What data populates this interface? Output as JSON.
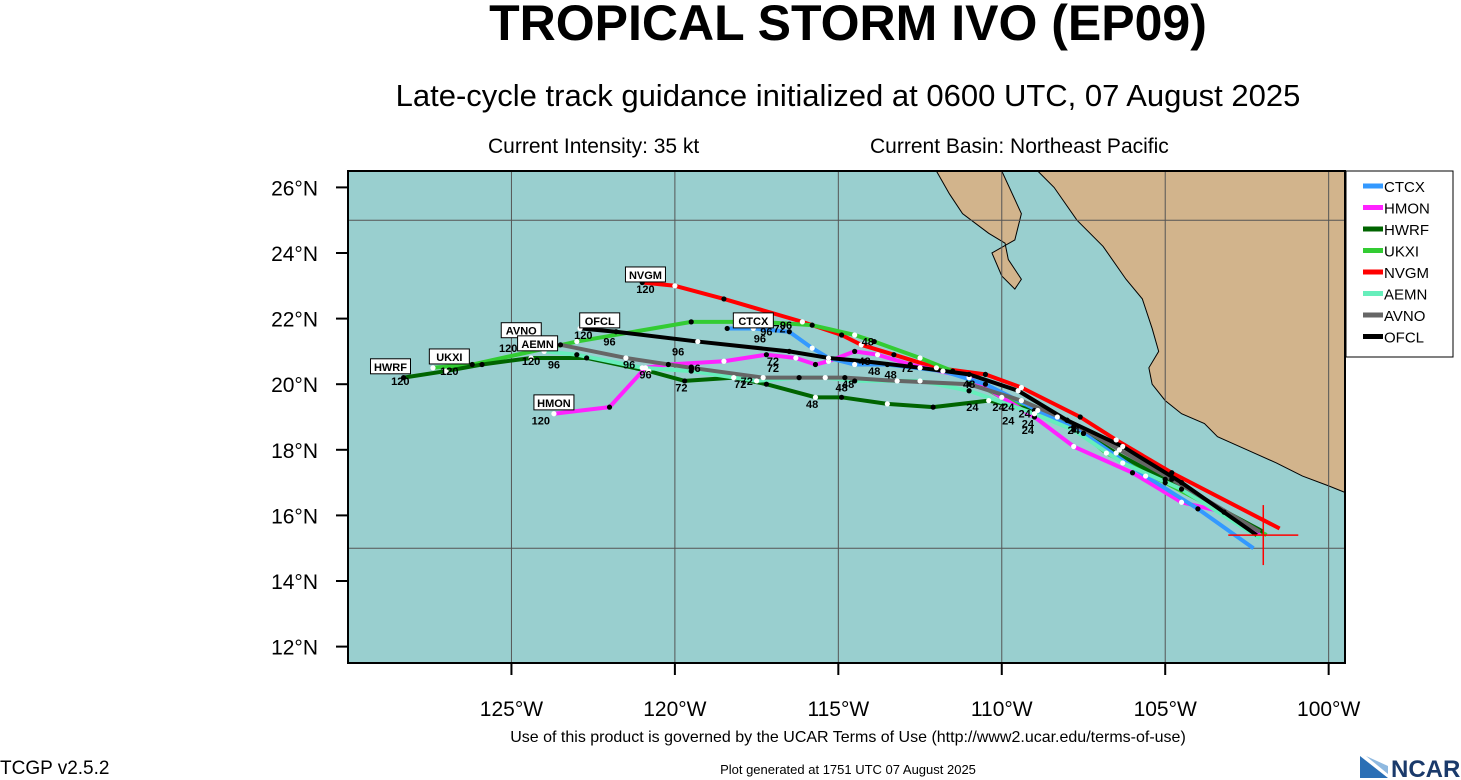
{
  "header": {
    "title": "TROPICAL STORM IVO (EP09)",
    "subtitle": "Late-cycle track guidance initialized at 0600 UTC, 07 August 2025",
    "intensity": "Current Intensity: 35 kt",
    "basin": "Current Basin: Northeast Pacific"
  },
  "footer": {
    "terms": "Use of this product is governed by the UCAR Terms of Use (http://www2.ucar.edu/terms-of-use)",
    "version": "TCGP v2.5.2",
    "generated": "Plot generated at 1751 UTC   07 August 2025",
    "logo_text": "NCAR"
  },
  "colors": {
    "ocean": "#99cfcf",
    "land": "#d2b48c",
    "grid": "#555555"
  },
  "map": {
    "lon_range": [
      -130,
      -99.5
    ],
    "lat_range": [
      11.5,
      26.5
    ],
    "lon_ticks": [
      {
        "lon": -125,
        "label": "125°W"
      },
      {
        "lon": -120,
        "label": "120°W"
      },
      {
        "lon": -115,
        "label": "115°W"
      },
      {
        "lon": -110,
        "label": "110°W"
      },
      {
        "lon": -105,
        "label": "105°W"
      },
      {
        "lon": -100,
        "label": "100°W"
      }
    ],
    "lat_ticks": [
      {
        "lat": 26,
        "label": "26°N"
      },
      {
        "lat": 24,
        "label": "24°N"
      },
      {
        "lat": 22,
        "label": "22°N"
      },
      {
        "lat": 20,
        "label": "20°N"
      },
      {
        "lat": 18,
        "label": "18°N"
      },
      {
        "lat": 16,
        "label": "16°N"
      },
      {
        "lat": 14,
        "label": "14°N"
      },
      {
        "lat": 12,
        "label": "12°N"
      }
    ],
    "gridlines_lon": [
      -125,
      -120,
      -115,
      -110,
      -105,
      -100
    ],
    "gridlines_lat": [
      25,
      15
    ],
    "current_position": {
      "lon": -102.0,
      "lat": 15.4
    },
    "land_polygons": [
      [
        [
          -110.0,
          26.5
        ],
        [
          -109.4,
          25.2
        ],
        [
          -109.6,
          24.4
        ],
        [
          -110.3,
          24.0
        ],
        [
          -110.0,
          23.3
        ],
        [
          -109.6,
          22.9
        ],
        [
          -109.4,
          23.2
        ],
        [
          -109.8,
          23.8
        ],
        [
          -109.9,
          24.3
        ],
        [
          -110.4,
          24.6
        ],
        [
          -111.2,
          25.2
        ],
        [
          -111.6,
          25.8
        ],
        [
          -112.0,
          26.5
        ]
      ],
      [
        [
          -108.9,
          26.5
        ],
        [
          -108.4,
          26.0
        ],
        [
          -107.7,
          25.0
        ],
        [
          -106.9,
          24.2
        ],
        [
          -106.2,
          23.2
        ],
        [
          -105.7,
          22.6
        ],
        [
          -105.4,
          21.7
        ],
        [
          -105.2,
          21.0
        ],
        [
          -105.5,
          20.5
        ],
        [
          -105.4,
          20.0
        ],
        [
          -105.0,
          19.5
        ],
        [
          -104.5,
          19.1
        ],
        [
          -103.8,
          18.8
        ],
        [
          -103.4,
          18.4
        ],
        [
          -102.5,
          18.0
        ],
        [
          -101.6,
          17.6
        ],
        [
          -100.8,
          17.2
        ],
        [
          -100.0,
          16.9
        ],
        [
          -99.5,
          16.7
        ],
        [
          -99.5,
          26.5
        ]
      ]
    ]
  },
  "legend": [
    {
      "name": "CTCX",
      "color": "#3399ff"
    },
    {
      "name": "HMON",
      "color": "#ff22ff"
    },
    {
      "name": "HWRF",
      "color": "#006400"
    },
    {
      "name": "UKXI",
      "color": "#33cc33"
    },
    {
      "name": "NVGM",
      "color": "#ff0000"
    },
    {
      "name": "AEMN",
      "color": "#66eebb"
    },
    {
      "name": "AVNO",
      "color": "#666666"
    },
    {
      "name": "OFCL",
      "color": "#000000"
    }
  ],
  "tracks": [
    {
      "name": "NVGM",
      "color": "#ff0000",
      "points": [
        [
          -101.5,
          15.6
        ],
        [
          -104.8,
          17.3
        ],
        [
          -106.5,
          18.3
        ],
        [
          -107.6,
          19.0
        ],
        [
          -109.4,
          19.9
        ],
        [
          -110.5,
          20.3
        ],
        [
          -112.0,
          20.5
        ],
        [
          -113.3,
          20.9
        ],
        [
          -114.3,
          21.2
        ],
        [
          -114.9,
          21.5
        ],
        [
          -116.1,
          21.9
        ],
        [
          -118.5,
          22.6
        ],
        [
          -120.0,
          23.0
        ],
        [
          -121.0,
          23.1
        ]
      ]
    },
    {
      "name": "UKXI",
      "color": "#33cc33",
      "points": [
        [
          -101.9,
          15.4
        ],
        [
          -105.0,
          17.0
        ],
        [
          -106.8,
          17.9
        ],
        [
          -107.8,
          18.7
        ],
        [
          -110.0,
          19.6
        ],
        [
          -111.5,
          20.4
        ],
        [
          -112.5,
          20.8
        ],
        [
          -113.9,
          21.3
        ],
        [
          -114.5,
          21.5
        ],
        [
          -115.8,
          21.8
        ],
        [
          -117.4,
          21.9
        ],
        [
          -119.5,
          21.9
        ],
        [
          -123.0,
          21.3
        ],
        [
          -126.2,
          20.6
        ],
        [
          -127.4,
          20.5
        ]
      ]
    },
    {
      "name": "HWRF",
      "color": "#006400",
      "points": [
        [
          -102.0,
          15.5
        ],
        [
          -105.0,
          17.1
        ],
        [
          -106.5,
          17.9
        ],
        [
          -107.5,
          18.5
        ],
        [
          -108.3,
          19.0
        ],
        [
          -109.0,
          19.2
        ],
        [
          -110.4,
          19.5
        ],
        [
          -112.1,
          19.3
        ],
        [
          -113.5,
          19.4
        ],
        [
          -114.9,
          19.6
        ],
        [
          -115.7,
          19.6
        ],
        [
          -117.2,
          20.0
        ],
        [
          -118.2,
          20.2
        ],
        [
          -119.7,
          20.1
        ],
        [
          -120.8,
          20.4
        ],
        [
          -122.7,
          20.8
        ],
        [
          -124.4,
          20.8
        ],
        [
          -125.9,
          20.6
        ],
        [
          -127.0,
          20.4
        ],
        [
          -128.3,
          20.2
        ]
      ]
    },
    {
      "name": "HMON",
      "color": "#ff22ff",
      "points": [
        [
          -102.1,
          15.4
        ],
        [
          -103.2,
          16.1
        ],
        [
          -104.5,
          16.4
        ],
        [
          -106.0,
          17.3
        ],
        [
          -107.8,
          18.1
        ],
        [
          -109.0,
          19.0
        ],
        [
          -111.0,
          20.2
        ],
        [
          -112.8,
          20.6
        ],
        [
          -113.8,
          20.9
        ],
        [
          -114.5,
          21.0
        ],
        [
          -115.3,
          20.7
        ],
        [
          -115.7,
          20.6
        ],
        [
          -116.3,
          20.8
        ],
        [
          -117.2,
          20.9
        ],
        [
          -118.5,
          20.7
        ],
        [
          -120.2,
          20.6
        ],
        [
          -120.9,
          20.5
        ],
        [
          -122.0,
          19.3
        ],
        [
          -123.7,
          19.1
        ]
      ]
    },
    {
      "name": "CTCX",
      "color": "#3399ff",
      "points": [
        [
          -102.3,
          15.0
        ],
        [
          -104.0,
          16.2
        ],
        [
          -105.6,
          17.2
        ],
        [
          -107.5,
          18.5
        ],
        [
          -108.9,
          19.2
        ],
        [
          -110.5,
          20.0
        ],
        [
          -111.8,
          20.4
        ],
        [
          -113.5,
          20.6
        ],
        [
          -114.5,
          20.6
        ],
        [
          -115.3,
          20.8
        ],
        [
          -115.8,
          21.1
        ],
        [
          -116.5,
          21.6
        ],
        [
          -117.6,
          21.7
        ],
        [
          -118.4,
          21.7
        ]
      ]
    },
    {
      "name": "AEMN",
      "color": "#66eebb",
      "points": [
        [
          -102.1,
          15.3
        ],
        [
          -104.5,
          16.8
        ],
        [
          -106.3,
          17.6
        ],
        [
          -107.8,
          18.6
        ],
        [
          -109.0,
          19.1
        ],
        [
          -111.0,
          19.8
        ],
        [
          -112.5,
          20.1
        ],
        [
          -114.5,
          20.1
        ],
        [
          -115.4,
          20.2
        ],
        [
          -116.2,
          20.2
        ],
        [
          -117.5,
          20.1
        ],
        [
          -119.5,
          20.4
        ],
        [
          -121.0,
          20.5
        ],
        [
          -123.0,
          20.9
        ],
        [
          -124.0,
          21.0
        ]
      ]
    },
    {
      "name": "AVNO",
      "color": "#666666",
      "points": [
        [
          -102.1,
          15.5
        ],
        [
          -104.8,
          17.1
        ],
        [
          -106.4,
          18.0
        ],
        [
          -108.0,
          18.9
        ],
        [
          -109.4,
          19.5
        ],
        [
          -111.0,
          20.0
        ],
        [
          -113.2,
          20.1
        ],
        [
          -114.8,
          20.2
        ],
        [
          -117.3,
          20.2
        ],
        [
          -119.5,
          20.5
        ],
        [
          -121.5,
          20.8
        ],
        [
          -123.5,
          21.2
        ]
      ]
    },
    {
      "name": "OFCL",
      "color": "#000000",
      "points": [
        [
          -102.2,
          15.4
        ],
        [
          -104.5,
          17.0
        ],
        [
          -106.3,
          18.1
        ],
        [
          -108.0,
          18.9
        ],
        [
          -109.5,
          19.8
        ],
        [
          -111.0,
          20.3
        ],
        [
          -112.5,
          20.5
        ],
        [
          -114.2,
          20.7
        ],
        [
          -115.3,
          20.8
        ],
        [
          -116.5,
          21.0
        ],
        [
          -119.3,
          21.3
        ],
        [
          -121.8,
          21.6
        ],
        [
          -122.9,
          21.7
        ]
      ]
    }
  ],
  "track_labels": [
    {
      "text": "NVGM",
      "lon": -120.9,
      "lat": 23.3
    },
    {
      "text": "CTCX",
      "lon": -117.6,
      "lat": 21.9
    },
    {
      "text": "OFCL",
      "lon": -122.3,
      "lat": 21.9
    },
    {
      "text": "AVNO",
      "lon": -124.7,
      "lat": 21.6
    },
    {
      "text": "AEMN",
      "lon": -124.2,
      "lat": 21.2
    },
    {
      "text": "UKXI",
      "lon": -126.9,
      "lat": 20.8
    },
    {
      "text": "HWRF",
      "lon": -128.7,
      "lat": 20.5
    },
    {
      "text": "HMON",
      "lon": -123.7,
      "lat": 19.4
    }
  ],
  "tau_labels": [
    {
      "text": "120",
      "lon": -120.9,
      "lat": 22.9
    },
    {
      "text": "96",
      "lon": -116.6,
      "lat": 21.8
    },
    {
      "text": "96",
      "lon": -117.2,
      "lat": 21.6
    },
    {
      "text": "96",
      "lon": -117.4,
      "lat": 21.4
    },
    {
      "text": "120",
      "lon": -122.8,
      "lat": 21.5
    },
    {
      "text": "96",
      "lon": -122.0,
      "lat": 21.3
    },
    {
      "text": "120",
      "lon": -125.1,
      "lat": 21.1
    },
    {
      "text": "120",
      "lon": -124.4,
      "lat": 20.7
    },
    {
      "text": "96",
      "lon": -123.7,
      "lat": 20.6
    },
    {
      "text": "120",
      "lon": -126.9,
      "lat": 20.4
    },
    {
      "text": "120",
      "lon": -128.4,
      "lat": 20.1
    },
    {
      "text": "120",
      "lon": -124.1,
      "lat": 18.9
    },
    {
      "text": "96",
      "lon": -119.9,
      "lat": 21.0
    },
    {
      "text": "96",
      "lon": -121.4,
      "lat": 20.6
    },
    {
      "text": "96",
      "lon": -119.4,
      "lat": 20.5
    },
    {
      "text": "96",
      "lon": -120.9,
      "lat": 20.3
    },
    {
      "text": "72",
      "lon": -116.8,
      "lat": 21.7
    },
    {
      "text": "72",
      "lon": -117.0,
      "lat": 20.7
    },
    {
      "text": "72",
      "lon": -117.0,
      "lat": 20.5
    },
    {
      "text": "72",
      "lon": -117.8,
      "lat": 20.1
    },
    {
      "text": "72",
      "lon": -119.8,
      "lat": 19.9
    },
    {
      "text": "72",
      "lon": -118.0,
      "lat": 20.0
    },
    {
      "text": "72",
      "lon": -112.9,
      "lat": 20.5
    },
    {
      "text": "48",
      "lon": -114.1,
      "lat": 21.3
    },
    {
      "text": "48",
      "lon": -114.2,
      "lat": 20.7
    },
    {
      "text": "48",
      "lon": -113.9,
      "lat": 20.4
    },
    {
      "text": "48",
      "lon": -113.4,
      "lat": 20.3
    },
    {
      "text": "48",
      "lon": -114.7,
      "lat": 20.0
    },
    {
      "text": "48",
      "lon": -114.9,
      "lat": 19.9
    },
    {
      "text": "48",
      "lon": -111.0,
      "lat": 20.0
    },
    {
      "text": "48",
      "lon": -115.8,
      "lat": 19.4
    },
    {
      "text": "24",
      "lon": -110.9,
      "lat": 19.3
    },
    {
      "text": "24",
      "lon": -110.1,
      "lat": 19.3
    },
    {
      "text": "24",
      "lon": -109.8,
      "lat": 19.3
    },
    {
      "text": "24",
      "lon": -109.3,
      "lat": 19.1
    },
    {
      "text": "24",
      "lon": -109.8,
      "lat": 18.9
    },
    {
      "text": "24",
      "lon": -109.2,
      "lat": 18.8
    },
    {
      "text": "24",
      "lon": -109.2,
      "lat": 18.6
    },
    {
      "text": "24",
      "lon": -107.8,
      "lat": 18.6
    }
  ]
}
